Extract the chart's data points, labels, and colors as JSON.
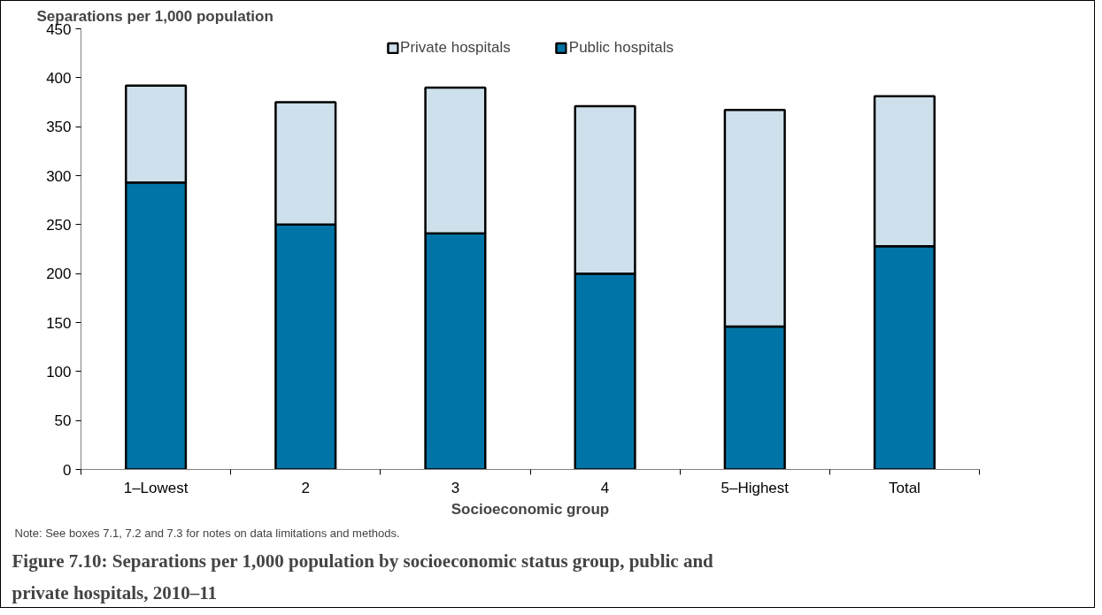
{
  "chart_data": {
    "type": "bar",
    "stacked": true,
    "title": "Figure 7.10: Separations per 1,000 population by socioeconomic status group, public and private hospitals, 2010–11",
    "ylabel": "Separations per 1,000 population",
    "xlabel": "Socioeconomic group",
    "categories": [
      "1–Lowest",
      "2",
      "3",
      "4",
      "5–Highest",
      "Total"
    ],
    "series": [
      {
        "name": "Public hospitals",
        "color": "#0074a6",
        "values": [
          293,
          250,
          241,
          200,
          146,
          228
        ]
      },
      {
        "name": "Private hospitals",
        "color": "#cde0eb",
        "values": [
          99,
          125,
          149,
          171,
          221,
          153
        ]
      }
    ],
    "ylim": [
      0,
      450
    ],
    "yticks": [
      0,
      50,
      100,
      150,
      200,
      250,
      300,
      350,
      400,
      450
    ],
    "grid": false,
    "legend": "top",
    "annotations": [
      "Note: See boxes 7.1, 7.2 and 7.3 for notes on data limitations and methods."
    ]
  }
}
